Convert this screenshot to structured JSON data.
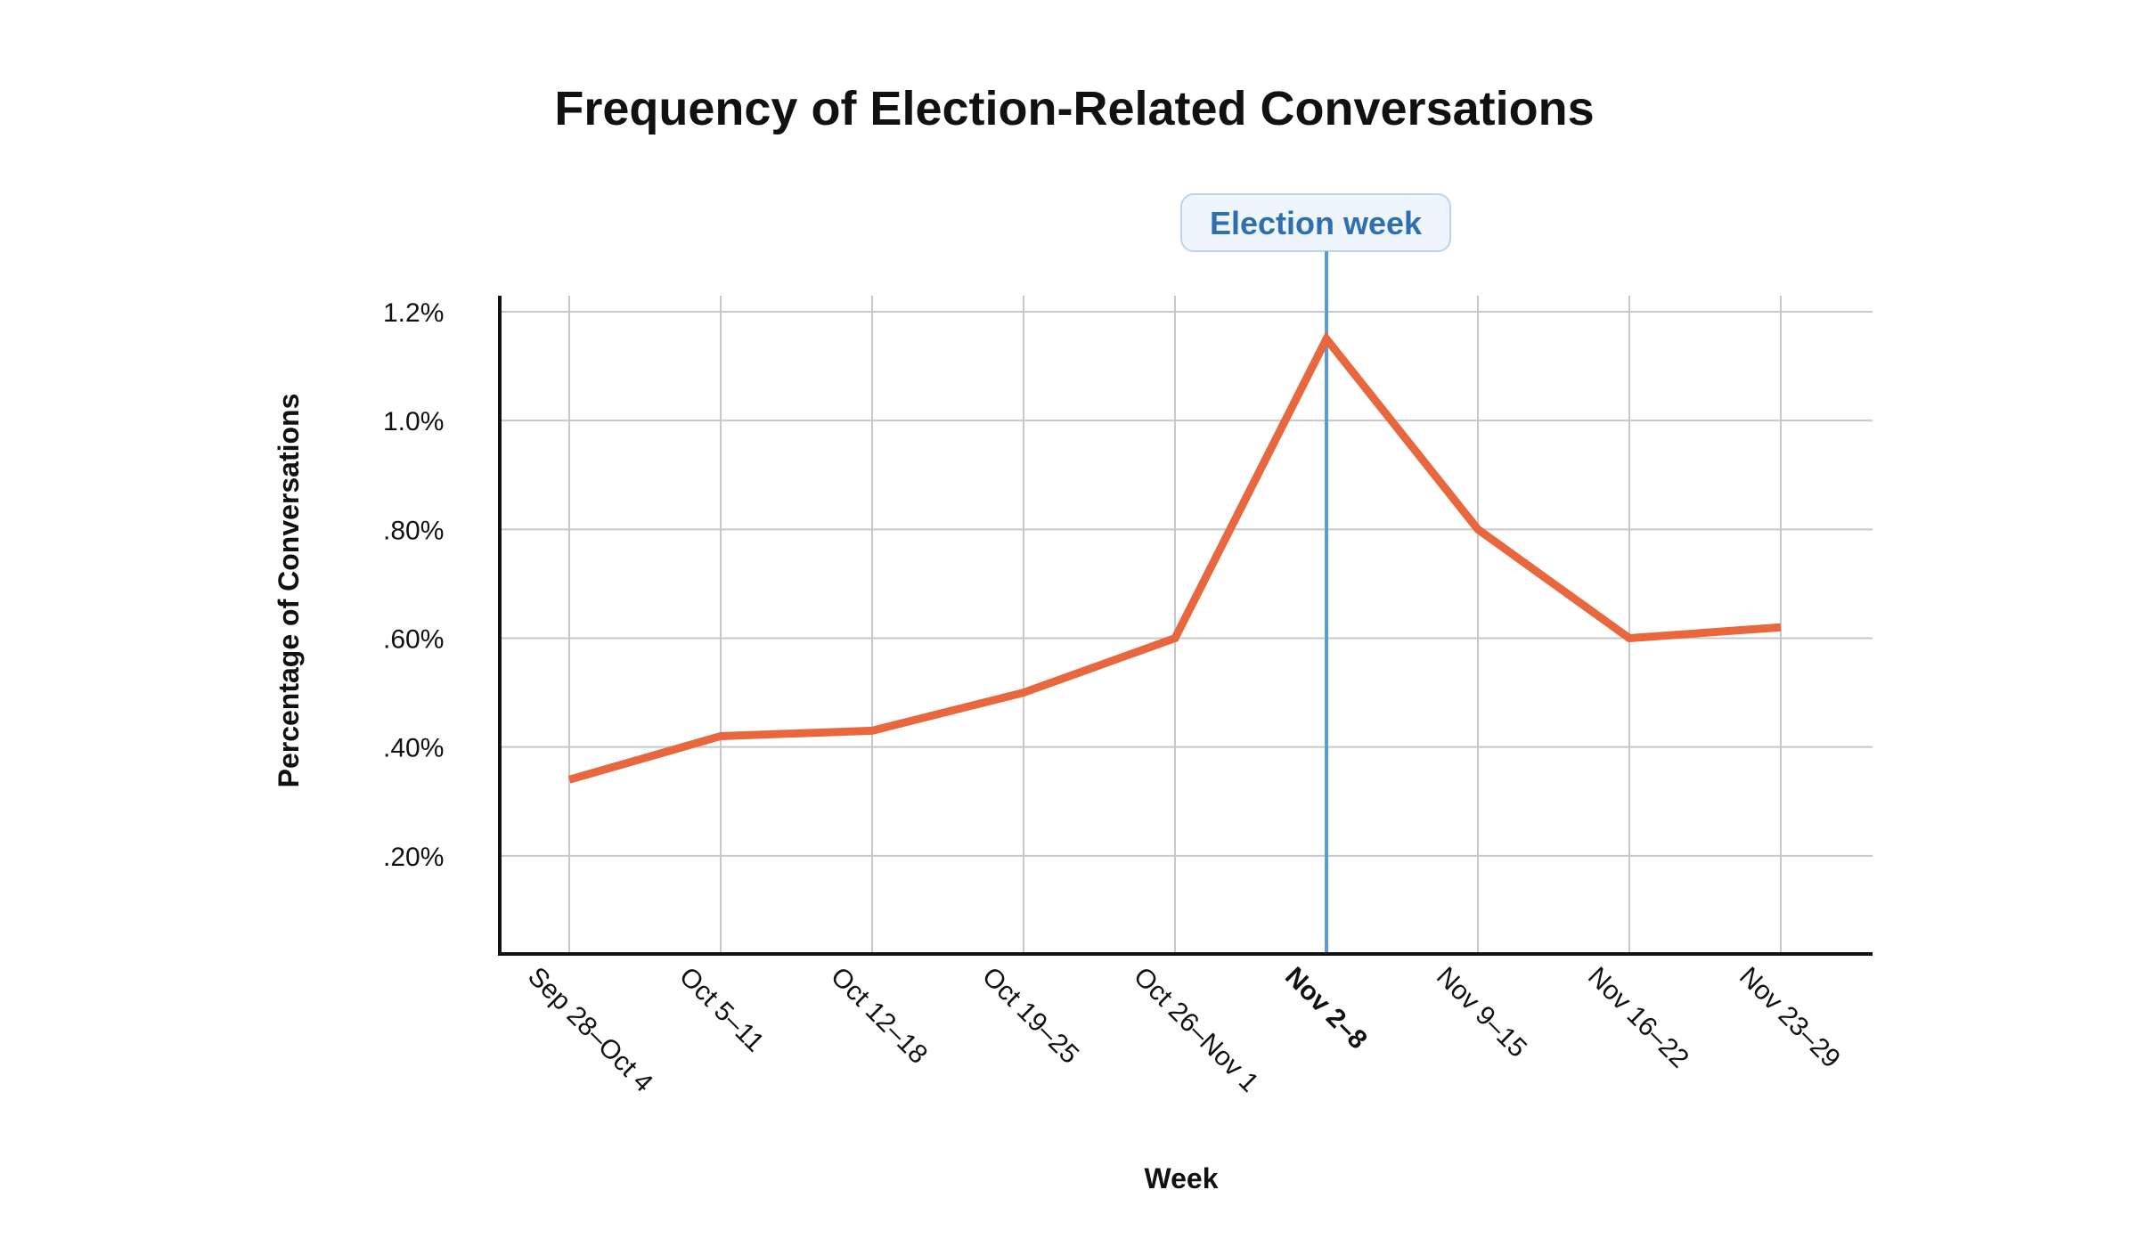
{
  "chart_data": {
    "type": "line",
    "title": "Frequency of Election-Related Conversations",
    "xlabel": "Week",
    "ylabel": "Percentage of Conversations",
    "categories": [
      "Sep 28–Oct 4",
      "Oct 5–11",
      "Oct 12–18",
      "Oct 19–25",
      "Oct 26–Nov 1",
      "Nov 2–8",
      "Nov 9–15",
      "Nov 16–22",
      "Nov 23–29"
    ],
    "values": [
      0.34,
      0.42,
      0.43,
      0.5,
      0.6,
      1.15,
      0.8,
      0.6,
      0.62
    ],
    "unit": "%",
    "ylim": [
      0,
      1.2
    ],
    "yticks": [
      0.2,
      0.4,
      0.6,
      0.8,
      1.0,
      1.2
    ],
    "ytick_labels": [
      ".20%",
      ".40%",
      ".60%",
      ".80%",
      "1.0%",
      "1.2%"
    ],
    "grid": true,
    "highlight_category": "Nov 2–8",
    "annotation": {
      "label": "Election week",
      "category": "Nov 2–8"
    },
    "colors": {
      "line": "#e8673f",
      "annotation": "#5b9bd8",
      "annotation_text": "#2f6fb0",
      "annotation_bg": "#eef5fc",
      "grid": "#c8c8c8",
      "axis": "#111111"
    }
  }
}
